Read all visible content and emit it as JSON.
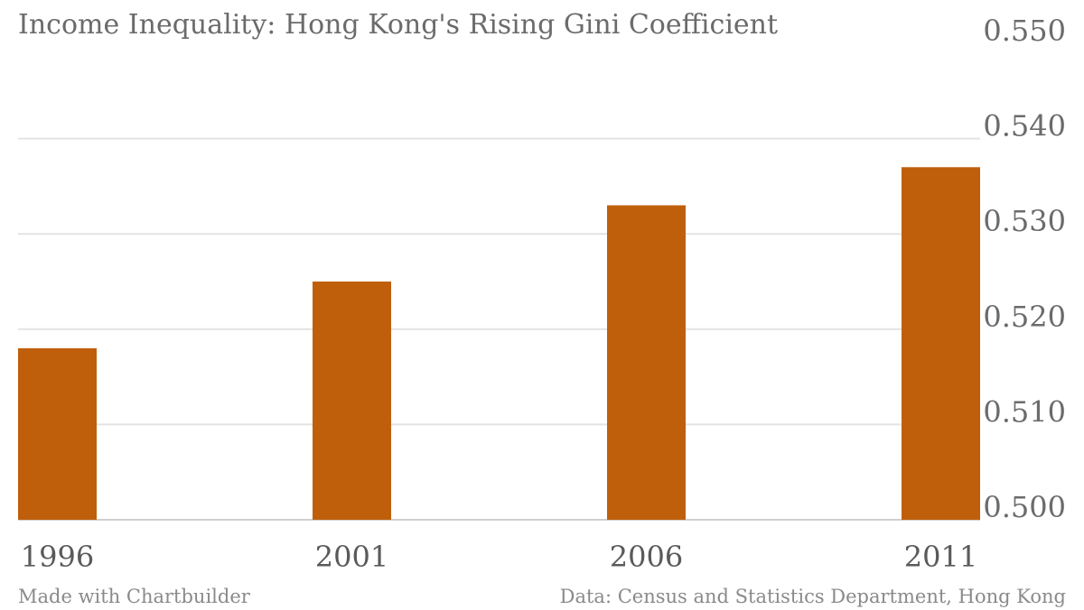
{
  "chart_data": {
    "type": "bar",
    "title": "Income Inequality: Hong Kong's Rising Gini Coefficient",
    "categories": [
      "1996",
      "2001",
      "2006",
      "2011"
    ],
    "values": [
      0.518,
      0.525,
      0.533,
      0.537
    ],
    "ylim": [
      0.5,
      0.55
    ],
    "yticks": [
      "0.500",
      "0.510",
      "0.520",
      "0.530",
      "0.540",
      "0.550"
    ],
    "xlabel": "",
    "ylabel": "",
    "y_axis_side": "right",
    "grid": true,
    "bar_color": "#bf5f0b"
  },
  "footer": {
    "credit": "Made with Chartbuilder",
    "source": "Data: Census and Statistics Department, Hong Kong"
  },
  "colors": {
    "bar": "#bf5f0b",
    "text": "#6b6b6b",
    "grid": "#e3e3e3"
  }
}
